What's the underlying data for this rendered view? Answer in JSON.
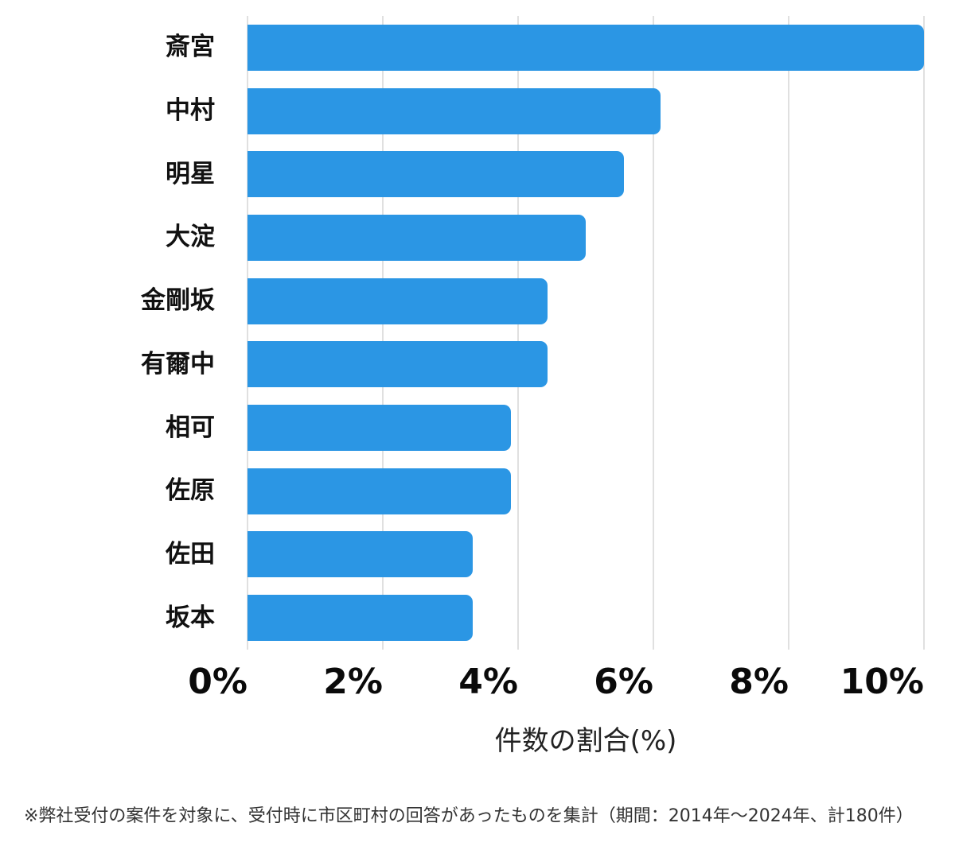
{
  "accent_color": "#2b96e4",
  "gridline_color": "#e0e0e0",
  "chart_data": {
    "type": "bar",
    "orientation": "horizontal",
    "categories": [
      "斎宮",
      "中村",
      "明星",
      "大淀",
      "金剛坂",
      "有爾中",
      "相可",
      "佐原",
      "佐田",
      "坂本"
    ],
    "values": [
      10.0,
      6.11,
      5.56,
      5.0,
      4.44,
      4.44,
      3.89,
      3.89,
      3.33,
      3.33
    ],
    "title": "",
    "xlabel": "件数の割合(%)",
    "ylabel": "",
    "xlim": [
      0,
      10
    ],
    "xtick_labels": [
      "0%",
      "2%",
      "4%",
      "6%",
      "8%",
      "10%"
    ],
    "xtick_values": [
      0,
      2,
      4,
      6,
      8,
      10
    ],
    "grid": "vertical",
    "legend": "none",
    "bar_color": "#2b96e4"
  },
  "footnote": "※弊社受付の案件を対象に、受付時に市区町村の回答があったものを集計（期間：2014年～2024年、計180件）"
}
